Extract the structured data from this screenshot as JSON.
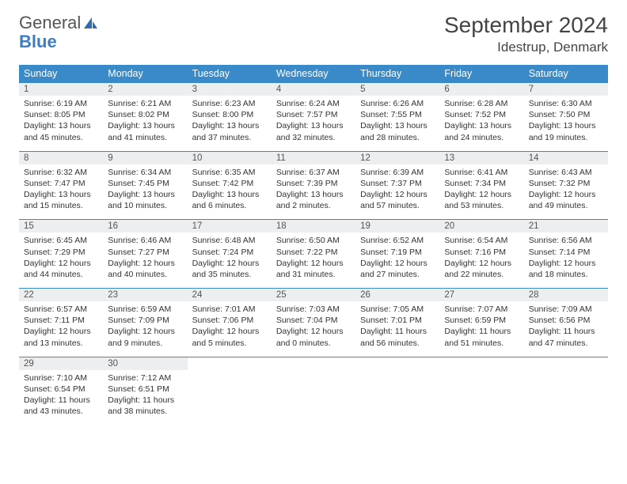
{
  "logo": {
    "text1": "General",
    "text2": "Blue"
  },
  "title": "September 2024",
  "location": "Idestrup, Denmark",
  "colors": {
    "header_bg": "#3a8ac9",
    "header_fg": "#ffffff",
    "daynum_bg": "#eceef0",
    "rule": "#3a8ac9",
    "logo_gray": "#555555",
    "logo_blue": "#3a7fc4"
  },
  "dayHeaders": [
    "Sunday",
    "Monday",
    "Tuesday",
    "Wednesday",
    "Thursday",
    "Friday",
    "Saturday"
  ],
  "weeks": [
    [
      {
        "n": "1",
        "sr": "Sunrise: 6:19 AM",
        "ss": "Sunset: 8:05 PM",
        "dl": "Daylight: 13 hours and 45 minutes."
      },
      {
        "n": "2",
        "sr": "Sunrise: 6:21 AM",
        "ss": "Sunset: 8:02 PM",
        "dl": "Daylight: 13 hours and 41 minutes."
      },
      {
        "n": "3",
        "sr": "Sunrise: 6:23 AM",
        "ss": "Sunset: 8:00 PM",
        "dl": "Daylight: 13 hours and 37 minutes."
      },
      {
        "n": "4",
        "sr": "Sunrise: 6:24 AM",
        "ss": "Sunset: 7:57 PM",
        "dl": "Daylight: 13 hours and 32 minutes."
      },
      {
        "n": "5",
        "sr": "Sunrise: 6:26 AM",
        "ss": "Sunset: 7:55 PM",
        "dl": "Daylight: 13 hours and 28 minutes."
      },
      {
        "n": "6",
        "sr": "Sunrise: 6:28 AM",
        "ss": "Sunset: 7:52 PM",
        "dl": "Daylight: 13 hours and 24 minutes."
      },
      {
        "n": "7",
        "sr": "Sunrise: 6:30 AM",
        "ss": "Sunset: 7:50 PM",
        "dl": "Daylight: 13 hours and 19 minutes."
      }
    ],
    [
      {
        "n": "8",
        "sr": "Sunrise: 6:32 AM",
        "ss": "Sunset: 7:47 PM",
        "dl": "Daylight: 13 hours and 15 minutes."
      },
      {
        "n": "9",
        "sr": "Sunrise: 6:34 AM",
        "ss": "Sunset: 7:45 PM",
        "dl": "Daylight: 13 hours and 10 minutes."
      },
      {
        "n": "10",
        "sr": "Sunrise: 6:35 AM",
        "ss": "Sunset: 7:42 PM",
        "dl": "Daylight: 13 hours and 6 minutes."
      },
      {
        "n": "11",
        "sr": "Sunrise: 6:37 AM",
        "ss": "Sunset: 7:39 PM",
        "dl": "Daylight: 13 hours and 2 minutes."
      },
      {
        "n": "12",
        "sr": "Sunrise: 6:39 AM",
        "ss": "Sunset: 7:37 PM",
        "dl": "Daylight: 12 hours and 57 minutes."
      },
      {
        "n": "13",
        "sr": "Sunrise: 6:41 AM",
        "ss": "Sunset: 7:34 PM",
        "dl": "Daylight: 12 hours and 53 minutes."
      },
      {
        "n": "14",
        "sr": "Sunrise: 6:43 AM",
        "ss": "Sunset: 7:32 PM",
        "dl": "Daylight: 12 hours and 49 minutes."
      }
    ],
    [
      {
        "n": "15",
        "sr": "Sunrise: 6:45 AM",
        "ss": "Sunset: 7:29 PM",
        "dl": "Daylight: 12 hours and 44 minutes."
      },
      {
        "n": "16",
        "sr": "Sunrise: 6:46 AM",
        "ss": "Sunset: 7:27 PM",
        "dl": "Daylight: 12 hours and 40 minutes."
      },
      {
        "n": "17",
        "sr": "Sunrise: 6:48 AM",
        "ss": "Sunset: 7:24 PM",
        "dl": "Daylight: 12 hours and 35 minutes."
      },
      {
        "n": "18",
        "sr": "Sunrise: 6:50 AM",
        "ss": "Sunset: 7:22 PM",
        "dl": "Daylight: 12 hours and 31 minutes."
      },
      {
        "n": "19",
        "sr": "Sunrise: 6:52 AM",
        "ss": "Sunset: 7:19 PM",
        "dl": "Daylight: 12 hours and 27 minutes."
      },
      {
        "n": "20",
        "sr": "Sunrise: 6:54 AM",
        "ss": "Sunset: 7:16 PM",
        "dl": "Daylight: 12 hours and 22 minutes."
      },
      {
        "n": "21",
        "sr": "Sunrise: 6:56 AM",
        "ss": "Sunset: 7:14 PM",
        "dl": "Daylight: 12 hours and 18 minutes."
      }
    ],
    [
      {
        "n": "22",
        "sr": "Sunrise: 6:57 AM",
        "ss": "Sunset: 7:11 PM",
        "dl": "Daylight: 12 hours and 13 minutes."
      },
      {
        "n": "23",
        "sr": "Sunrise: 6:59 AM",
        "ss": "Sunset: 7:09 PM",
        "dl": "Daylight: 12 hours and 9 minutes."
      },
      {
        "n": "24",
        "sr": "Sunrise: 7:01 AM",
        "ss": "Sunset: 7:06 PM",
        "dl": "Daylight: 12 hours and 5 minutes."
      },
      {
        "n": "25",
        "sr": "Sunrise: 7:03 AM",
        "ss": "Sunset: 7:04 PM",
        "dl": "Daylight: 12 hours and 0 minutes."
      },
      {
        "n": "26",
        "sr": "Sunrise: 7:05 AM",
        "ss": "Sunset: 7:01 PM",
        "dl": "Daylight: 11 hours and 56 minutes."
      },
      {
        "n": "27",
        "sr": "Sunrise: 7:07 AM",
        "ss": "Sunset: 6:59 PM",
        "dl": "Daylight: 11 hours and 51 minutes."
      },
      {
        "n": "28",
        "sr": "Sunrise: 7:09 AM",
        "ss": "Sunset: 6:56 PM",
        "dl": "Daylight: 11 hours and 47 minutes."
      }
    ],
    [
      {
        "n": "29",
        "sr": "Sunrise: 7:10 AM",
        "ss": "Sunset: 6:54 PM",
        "dl": "Daylight: 11 hours and 43 minutes."
      },
      {
        "n": "30",
        "sr": "Sunrise: 7:12 AM",
        "ss": "Sunset: 6:51 PM",
        "dl": "Daylight: 11 hours and 38 minutes."
      },
      null,
      null,
      null,
      null,
      null
    ]
  ]
}
